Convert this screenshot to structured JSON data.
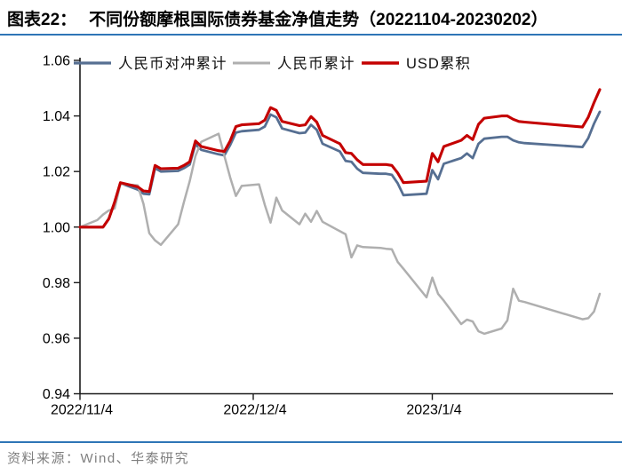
{
  "header": {
    "tag": "图表22：",
    "title": "不同份额摩根国际债券基金净值走势（20221104-20230202）"
  },
  "footer": {
    "source": "资料来源：Wind、华泰研究"
  },
  "colors": {
    "hedged_cny": "#566F92",
    "cny": "#AFAFAF",
    "usd": "#C40000",
    "divider": "#2E75B6",
    "axis": "#1a1a1a",
    "tick_text": "#000000",
    "source_text": "#7F7F7F"
  },
  "chart_data": {
    "type": "line",
    "title": "",
    "xlabel": "",
    "ylabel": "",
    "grid": false,
    "legend_position": "top",
    "ylim": [
      0.94,
      1.06
    ],
    "y_ticks": [
      0.94,
      0.96,
      0.98,
      1.0,
      1.02,
      1.04,
      1.06
    ],
    "x_range": [
      "2022-11-04",
      "2023-02-02"
    ],
    "x_ticks": [
      {
        "date": "2022-11-04",
        "label": "2022/11/4"
      },
      {
        "date": "2022-12-04",
        "label": "2022/12/4"
      },
      {
        "date": "2023-01-04",
        "label": "2023/1/4"
      }
    ],
    "series": [
      {
        "name": "人民币对冲累计",
        "key": "hedged_cny",
        "color_key": "hedged_cny",
        "points": [
          [
            "2022-11-04",
            1.0
          ],
          [
            "2022-11-07",
            1.0
          ],
          [
            "2022-11-08",
            1.0
          ],
          [
            "2022-11-09",
            1.003
          ],
          [
            "2022-11-10",
            1.009
          ],
          [
            "2022-11-11",
            1.0158
          ],
          [
            "2022-11-14",
            1.0135
          ],
          [
            "2022-11-15",
            1.012
          ],
          [
            "2022-11-16",
            1.0118
          ],
          [
            "2022-11-17",
            1.0212
          ],
          [
            "2022-11-18",
            1.02
          ],
          [
            "2022-11-21",
            1.0202
          ],
          [
            "2022-11-22",
            1.0212
          ],
          [
            "2022-11-23",
            1.0225
          ],
          [
            "2022-11-24",
            1.0298
          ],
          [
            "2022-11-25",
            1.0278
          ],
          [
            "2022-11-28",
            1.0262
          ],
          [
            "2022-11-29",
            1.0258
          ],
          [
            "2022-11-30",
            1.0295
          ],
          [
            "2022-12-01",
            1.034
          ],
          [
            "2022-12-02",
            1.0345
          ],
          [
            "2022-12-05",
            1.035
          ],
          [
            "2022-12-06",
            1.0362
          ],
          [
            "2022-12-07",
            1.0405
          ],
          [
            "2022-12-08",
            1.0395
          ],
          [
            "2022-12-09",
            1.0355
          ],
          [
            "2022-12-12",
            1.0338
          ],
          [
            "2022-12-13",
            1.034
          ],
          [
            "2022-12-14",
            1.0368
          ],
          [
            "2022-12-15",
            1.035
          ],
          [
            "2022-12-16",
            1.03
          ],
          [
            "2022-12-19",
            1.0272
          ],
          [
            "2022-12-20",
            1.0238
          ],
          [
            "2022-12-21",
            1.0235
          ],
          [
            "2022-12-22",
            1.021
          ],
          [
            "2022-12-23",
            1.0195
          ],
          [
            "2022-12-26",
            1.0192
          ],
          [
            "2022-12-27",
            1.0192
          ],
          [
            "2022-12-28",
            1.0188
          ],
          [
            "2022-12-29",
            1.0158
          ],
          [
            "2022-12-30",
            1.0115
          ],
          [
            "2023-01-03",
            1.012
          ],
          [
            "2023-01-04",
            1.0205
          ],
          [
            "2023-01-05",
            1.0172
          ],
          [
            "2023-01-06",
            1.0228
          ],
          [
            "2023-01-09",
            1.0248
          ],
          [
            "2023-01-10",
            1.0265
          ],
          [
            "2023-01-11",
            1.0248
          ],
          [
            "2023-01-12",
            1.03
          ],
          [
            "2023-01-13",
            1.0318
          ],
          [
            "2023-01-16",
            1.0325
          ],
          [
            "2023-01-17",
            1.0325
          ],
          [
            "2023-01-18",
            1.0312
          ],
          [
            "2023-01-19",
            1.0305
          ],
          [
            "2023-01-20",
            1.0302
          ],
          [
            "2023-01-30",
            1.0288
          ],
          [
            "2023-01-31",
            1.032
          ],
          [
            "2023-02-01",
            1.0372
          ],
          [
            "2023-02-02",
            1.0415
          ]
        ]
      },
      {
        "name": "人民币累计",
        "key": "cny",
        "color_key": "cny",
        "points": [
          [
            "2022-11-04",
            1.0
          ],
          [
            "2022-11-07",
            1.0025
          ],
          [
            "2022-11-08",
            1.0045
          ],
          [
            "2022-11-09",
            1.006
          ],
          [
            "2022-11-10",
            1.0067
          ],
          [
            "2022-11-11",
            1.0155
          ],
          [
            "2022-11-14",
            1.015
          ],
          [
            "2022-11-15",
            1.0083
          ],
          [
            "2022-11-16",
            0.9978
          ],
          [
            "2022-11-17",
            0.9952
          ],
          [
            "2022-11-18",
            0.9936
          ],
          [
            "2022-11-21",
            1.001
          ],
          [
            "2022-11-22",
            1.009
          ],
          [
            "2022-11-23",
            1.0165
          ],
          [
            "2022-11-24",
            1.0256
          ],
          [
            "2022-11-25",
            1.0307
          ],
          [
            "2022-11-28",
            1.0336
          ],
          [
            "2022-11-29",
            1.0256
          ],
          [
            "2022-11-30",
            1.0179
          ],
          [
            "2022-12-01",
            1.0112
          ],
          [
            "2022-12-02",
            1.0148
          ],
          [
            "2022-12-05",
            1.0154
          ],
          [
            "2022-12-06",
            1.008
          ],
          [
            "2022-12-07",
            1.0016
          ],
          [
            "2022-12-08",
            1.0106
          ],
          [
            "2022-12-09",
            1.006
          ],
          [
            "2022-12-12",
            1.001
          ],
          [
            "2022-12-13",
            1.0048
          ],
          [
            "2022-12-14",
            1.0019
          ],
          [
            "2022-12-15",
            1.0058
          ],
          [
            "2022-12-16",
            1.0019
          ],
          [
            "2022-12-19",
            0.9985
          ],
          [
            "2022-12-20",
            0.9974
          ],
          [
            "2022-12-21",
            0.9891
          ],
          [
            "2022-12-22",
            0.9934
          ],
          [
            "2022-12-23",
            0.9928
          ],
          [
            "2022-12-26",
            0.9925
          ],
          [
            "2022-12-27",
            0.9922
          ],
          [
            "2022-12-28",
            0.992
          ],
          [
            "2022-12-29",
            0.9875
          ],
          [
            "2022-12-30",
            0.985
          ],
          [
            "2023-01-03",
            0.9747
          ],
          [
            "2023-01-04",
            0.9818
          ],
          [
            "2023-01-05",
            0.976
          ],
          [
            "2023-01-06",
            0.9735
          ],
          [
            "2023-01-09",
            0.9651
          ],
          [
            "2023-01-10",
            0.9667
          ],
          [
            "2023-01-11",
            0.966
          ],
          [
            "2023-01-12",
            0.9625
          ],
          [
            "2023-01-13",
            0.9616
          ],
          [
            "2023-01-16",
            0.9635
          ],
          [
            "2023-01-17",
            0.9664
          ],
          [
            "2023-01-18",
            0.9778
          ],
          [
            "2023-01-19",
            0.9735
          ],
          [
            "2023-01-20",
            0.973
          ],
          [
            "2023-01-30",
            0.9668
          ],
          [
            "2023-01-31",
            0.9672
          ],
          [
            "2023-02-01",
            0.9696
          ],
          [
            "2023-02-02",
            0.976
          ]
        ]
      },
      {
        "name": "USD累积",
        "key": "usd",
        "color_key": "usd",
        "points": [
          [
            "2022-11-04",
            1.0
          ],
          [
            "2022-11-07",
            1.0
          ],
          [
            "2022-11-08",
            1.0
          ],
          [
            "2022-11-09",
            1.003
          ],
          [
            "2022-11-10",
            1.009
          ],
          [
            "2022-11-11",
            1.016
          ],
          [
            "2022-11-14",
            1.0145
          ],
          [
            "2022-11-15",
            1.013
          ],
          [
            "2022-11-16",
            1.0128
          ],
          [
            "2022-11-17",
            1.0222
          ],
          [
            "2022-11-18",
            1.021
          ],
          [
            "2022-11-21",
            1.0212
          ],
          [
            "2022-11-22",
            1.0222
          ],
          [
            "2022-11-23",
            1.0235
          ],
          [
            "2022-11-24",
            1.031
          ],
          [
            "2022-11-25",
            1.029
          ],
          [
            "2022-11-28",
            1.0275
          ],
          [
            "2022-11-29",
            1.0272
          ],
          [
            "2022-11-30",
            1.031
          ],
          [
            "2022-12-01",
            1.0362
          ],
          [
            "2022-12-02",
            1.0368
          ],
          [
            "2022-12-05",
            1.0372
          ],
          [
            "2022-12-06",
            1.0385
          ],
          [
            "2022-12-07",
            1.043
          ],
          [
            "2022-12-08",
            1.042
          ],
          [
            "2022-12-09",
            1.038
          ],
          [
            "2022-12-12",
            1.0365
          ],
          [
            "2022-12-13",
            1.0368
          ],
          [
            "2022-12-14",
            1.0398
          ],
          [
            "2022-12-15",
            1.0378
          ],
          [
            "2022-12-16",
            1.033
          ],
          [
            "2022-12-19",
            1.03
          ],
          [
            "2022-12-20",
            1.0268
          ],
          [
            "2022-12-21",
            1.0265
          ],
          [
            "2022-12-22",
            1.0242
          ],
          [
            "2022-12-23",
            1.0225
          ],
          [
            "2022-12-26",
            1.0225
          ],
          [
            "2022-12-27",
            1.0225
          ],
          [
            "2022-12-28",
            1.0222
          ],
          [
            "2022-12-29",
            1.0195
          ],
          [
            "2022-12-30",
            1.016
          ],
          [
            "2023-01-03",
            1.0165
          ],
          [
            "2023-01-04",
            1.0265
          ],
          [
            "2023-01-05",
            1.0235
          ],
          [
            "2023-01-06",
            1.029
          ],
          [
            "2023-01-09",
            1.0312
          ],
          [
            "2023-01-10",
            1.033
          ],
          [
            "2023-01-11",
            1.0315
          ],
          [
            "2023-01-12",
            1.037
          ],
          [
            "2023-01-13",
            1.0392
          ],
          [
            "2023-01-16",
            1.04
          ],
          [
            "2023-01-17",
            1.04
          ],
          [
            "2023-01-18",
            1.0388
          ],
          [
            "2023-01-19",
            1.038
          ],
          [
            "2023-01-20",
            1.0378
          ],
          [
            "2023-01-30",
            1.036
          ],
          [
            "2023-01-31",
            1.0395
          ],
          [
            "2023-02-01",
            1.0448
          ],
          [
            "2023-02-02",
            1.0495
          ]
        ]
      }
    ]
  }
}
